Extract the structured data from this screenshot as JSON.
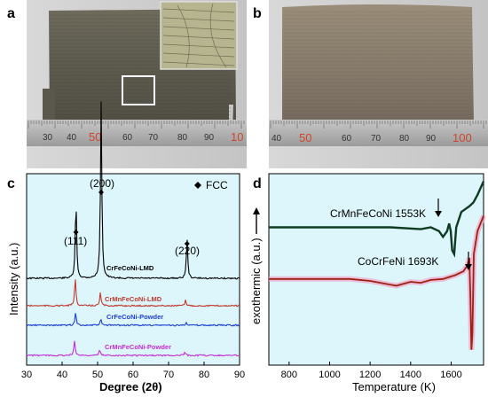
{
  "panels": {
    "a": {
      "label": "a",
      "ruler_numbers": [
        "30",
        "40",
        "50",
        "60",
        "70",
        "80",
        "90",
        "10"
      ]
    },
    "b": {
      "label": "b",
      "ruler_numbers": [
        "40",
        "50",
        "60",
        "70",
        "80",
        "90",
        "100"
      ]
    },
    "c": {
      "label": "c"
    },
    "d": {
      "label": "d"
    }
  },
  "colors": {
    "plot_bg": "#dcf6fb",
    "lmd_crfeconi": "#000000",
    "lmd_crmnfeconi": "#c0392b",
    "powder_crfeconi": "#1f3fd6",
    "powder_crmnfeconi": "#c42cd8",
    "dsc_crmnfeconi": "#0f3b22",
    "dsc_cocrfeni": "#9b2315"
  },
  "chart_data": [
    {
      "type": "line",
      "panel": "c",
      "xlabel": "Degree (2θ)",
      "ylabel": "Intensity (a.u.)",
      "xlim": [
        30,
        90
      ],
      "x_ticks": [
        "30",
        "40",
        "50",
        "60",
        "70",
        "80",
        "90"
      ],
      "legend": "FCC",
      "peak_labels": [
        "(111)",
        "(200)",
        "(220)"
      ],
      "peaks": [
        {
          "label": "(111)",
          "x": 43.9
        },
        {
          "label": "(200)",
          "x": 51.0
        },
        {
          "label": "(220)",
          "x": 75.2
        }
      ],
      "series": [
        {
          "name": "CrFeCoNi-LMD",
          "color": "#000000",
          "peaks": [
            {
              "x": 43.9,
              "h": 0.45
            },
            {
              "x": 51.0,
              "h": 1.0
            },
            {
              "x": 75.2,
              "h": 0.23
            }
          ]
        },
        {
          "name": "CrMnFeCoNi-LMD",
          "color": "#c0392b",
          "peaks": [
            {
              "x": 43.7,
              "h": 0.25
            },
            {
              "x": 50.8,
              "h": 0.12
            },
            {
              "x": 74.8,
              "h": 0.05
            }
          ]
        },
        {
          "name": "CrFeCoNi-Powder",
          "color": "#1f3fd6",
          "peaks": [
            {
              "x": 43.8,
              "h": 0.15
            },
            {
              "x": 50.9,
              "h": 0.07
            },
            {
              "x": 75.0,
              "h": 0.04
            }
          ]
        },
        {
          "name": "CrMnFeCoNi-Powder",
          "color": "#c42cd8",
          "peaks": [
            {
              "x": 43.5,
              "h": 0.2
            },
            {
              "x": 50.6,
              "h": 0.07
            },
            {
              "x": 74.6,
              "h": 0.04
            }
          ]
        }
      ]
    },
    {
      "type": "line",
      "panel": "d",
      "xlabel": "Temperature (K)",
      "ylabel": "exothermic (a.u.)",
      "xlim": [
        700,
        1760
      ],
      "x_ticks": [
        "800",
        "1000",
        "1200",
        "1400",
        "1600"
      ],
      "annotations": [
        "CrMnFeCoNi 1553K",
        "CoCrFeNi 1693K"
      ],
      "series": [
        {
          "name": "CrMnFeCoNi",
          "color": "#0f3b22",
          "mark_T": 1553,
          "points": [
            [
              700,
              0.72
            ],
            [
              900,
              0.72
            ],
            [
              1100,
              0.72
            ],
            [
              1300,
              0.72
            ],
            [
              1450,
              0.71
            ],
            [
              1500,
              0.72
            ],
            [
              1540,
              0.7
            ],
            [
              1560,
              0.67
            ],
            [
              1580,
              0.7
            ],
            [
              1590,
              0.74
            ],
            [
              1598,
              0.7
            ],
            [
              1605,
              0.6
            ],
            [
              1615,
              0.58
            ],
            [
              1625,
              0.72
            ],
            [
              1650,
              0.8
            ],
            [
              1690,
              0.83
            ],
            [
              1710,
              0.85
            ],
            [
              1730,
              0.89
            ],
            [
              1760,
              0.96
            ]
          ]
        },
        {
          "name": "CoCrFeNi",
          "color": "#9b2315",
          "mark_T": 1693,
          "points": [
            [
              700,
              0.45
            ],
            [
              900,
              0.45
            ],
            [
              1100,
              0.45
            ],
            [
              1200,
              0.44
            ],
            [
              1300,
              0.42
            ],
            [
              1330,
              0.415
            ],
            [
              1400,
              0.435
            ],
            [
              1450,
              0.43
            ],
            [
              1500,
              0.445
            ],
            [
              1560,
              0.45
            ],
            [
              1620,
              0.47
            ],
            [
              1660,
              0.49
            ],
            [
              1680,
              0.52
            ],
            [
              1690,
              0.56
            ],
            [
              1695,
              0.35
            ],
            [
              1700,
              0.08
            ],
            [
              1705,
              0.16
            ],
            [
              1712,
              0.58
            ],
            [
              1730,
              0.7
            ],
            [
              1760,
              0.78
            ]
          ]
        }
      ]
    }
  ]
}
